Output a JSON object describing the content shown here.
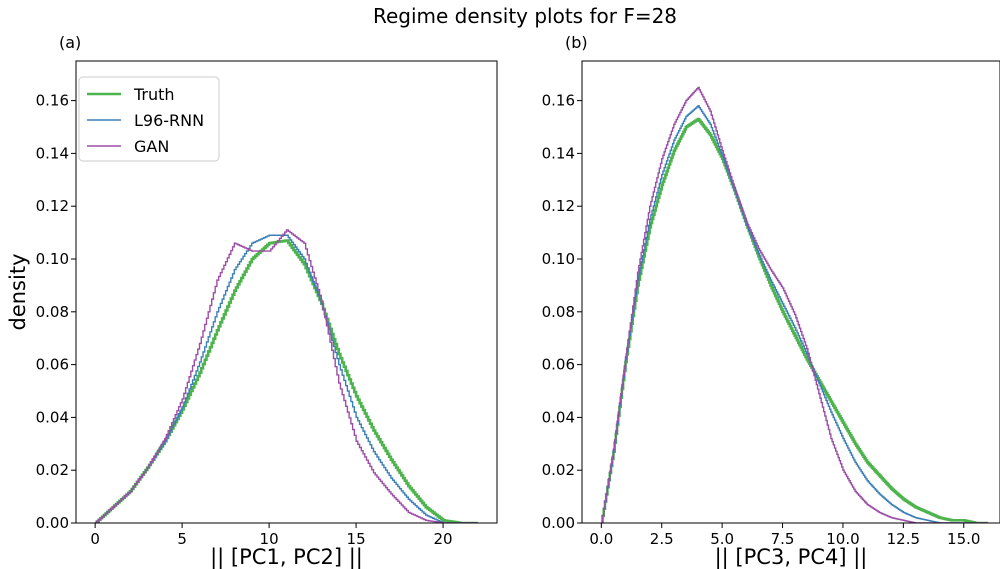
{
  "figure": {
    "suptitle": "Regime density plots for F=28"
  },
  "colors": {
    "Truth": "#4db34d",
    "L96-RNN": "#3b7fb7",
    "GAN": "#9b4ea5"
  },
  "chart_data": [
    {
      "type": "line",
      "panel_label": "(a)",
      "xlabel": "|| [PC1, PC2] ||",
      "ylabel": "density",
      "xlim": [
        -1.1,
        23.1
      ],
      "ylim": [
        0,
        0.175
      ],
      "xticks": [
        0,
        5,
        10,
        15,
        20
      ],
      "xtick_labels": [
        "0",
        "5",
        "10",
        "15",
        "20"
      ],
      "yticks": [
        0.0,
        0.02,
        0.04,
        0.06,
        0.08,
        0.1,
        0.12,
        0.14,
        0.16
      ],
      "ytick_labels": [
        "0.00",
        "0.02",
        "0.04",
        "0.06",
        "0.08",
        "0.10",
        "0.12",
        "0.14",
        "0.16"
      ],
      "grid": false,
      "legend": {
        "placement": "top-left",
        "entries": [
          "Truth",
          "L96-RNN",
          "GAN"
        ]
      },
      "series": [
        {
          "name": "Truth",
          "x": [
            0,
            1,
            2,
            3,
            4,
            5,
            6,
            7,
            8,
            9,
            10,
            11,
            12,
            13,
            14,
            15,
            16,
            17,
            18,
            19,
            20,
            21,
            22
          ],
          "y": [
            0.0,
            0.006,
            0.012,
            0.021,
            0.031,
            0.043,
            0.057,
            0.073,
            0.088,
            0.1,
            0.106,
            0.107,
            0.098,
            0.083,
            0.064,
            0.048,
            0.035,
            0.024,
            0.014,
            0.006,
            0.001,
            0.0,
            0.0
          ]
        },
        {
          "name": "L96-RNN",
          "x": [
            0,
            1,
            2,
            3,
            4,
            5,
            6,
            7,
            8,
            9,
            10,
            11,
            12,
            13,
            14,
            15,
            16,
            17,
            18,
            19,
            20,
            21,
            22
          ],
          "y": [
            0.0,
            0.006,
            0.012,
            0.021,
            0.031,
            0.044,
            0.061,
            0.08,
            0.096,
            0.106,
            0.109,
            0.109,
            0.1,
            0.083,
            0.06,
            0.04,
            0.027,
            0.017,
            0.009,
            0.003,
            0.0,
            0.0,
            0.0
          ]
        },
        {
          "name": "GAN",
          "x": [
            0,
            1,
            2,
            3,
            4,
            5,
            6,
            7,
            8,
            9,
            10,
            11,
            12,
            13,
            14,
            15,
            16,
            17,
            18,
            19,
            20,
            21,
            22
          ],
          "y": [
            0.0,
            0.006,
            0.012,
            0.021,
            0.032,
            0.047,
            0.068,
            0.092,
            0.106,
            0.103,
            0.103,
            0.111,
            0.106,
            0.084,
            0.053,
            0.031,
            0.019,
            0.011,
            0.004,
            0.001,
            0.0,
            0.0,
            0.0
          ]
        }
      ]
    },
    {
      "type": "line",
      "panel_label": "(b)",
      "xlabel": "|| [PC3, PC4] ||",
      "ylabel": "",
      "xlim": [
        -0.8,
        16.5
      ],
      "ylim": [
        0,
        0.175
      ],
      "xticks": [
        0,
        2.5,
        5,
        7.5,
        10,
        12.5,
        15
      ],
      "xtick_labels": [
        "0.0",
        "2.5",
        "5.0",
        "7.5",
        "10.0",
        "12.5",
        "15.0"
      ],
      "yticks": [
        0.0,
        0.02,
        0.04,
        0.06,
        0.08,
        0.1,
        0.12,
        0.14,
        0.16
      ],
      "ytick_labels": [
        "0.00",
        "0.02",
        "0.04",
        "0.06",
        "0.08",
        "0.10",
        "0.12",
        "0.14",
        "0.16"
      ],
      "grid": false,
      "legend": null,
      "series": [
        {
          "name": "Truth",
          "x": [
            0,
            0.5,
            1,
            1.5,
            2,
            2.5,
            3,
            3.5,
            4,
            4.5,
            5,
            5.5,
            6,
            6.5,
            7,
            7.5,
            8,
            8.5,
            9,
            9.5,
            10,
            10.5,
            11,
            11.5,
            12,
            12.5,
            13,
            13.5,
            14,
            14.5,
            15,
            15.5,
            16
          ],
          "y": [
            0.0,
            0.027,
            0.061,
            0.09,
            0.112,
            0.128,
            0.141,
            0.15,
            0.153,
            0.147,
            0.138,
            0.126,
            0.113,
            0.101,
            0.09,
            0.08,
            0.071,
            0.062,
            0.054,
            0.046,
            0.038,
            0.03,
            0.023,
            0.018,
            0.013,
            0.009,
            0.006,
            0.004,
            0.002,
            0.001,
            0.001,
            0.0,
            0.0
          ]
        },
        {
          "name": "L96-RNN",
          "x": [
            0,
            0.5,
            1,
            1.5,
            2,
            2.5,
            3,
            3.5,
            4,
            4.5,
            5,
            5.5,
            6,
            6.5,
            7,
            7.5,
            8,
            8.5,
            9,
            9.5,
            10,
            10.5,
            11,
            11.5,
            12,
            12.5,
            13,
            13.5,
            14,
            14.5,
            15,
            15.5,
            16
          ],
          "y": [
            0.0,
            0.027,
            0.062,
            0.092,
            0.115,
            0.132,
            0.145,
            0.154,
            0.158,
            0.151,
            0.139,
            0.126,
            0.113,
            0.102,
            0.092,
            0.083,
            0.074,
            0.064,
            0.053,
            0.042,
            0.032,
            0.023,
            0.016,
            0.011,
            0.007,
            0.004,
            0.002,
            0.001,
            0.0,
            0.0,
            0.0,
            0.0,
            0.0
          ]
        },
        {
          "name": "GAN",
          "x": [
            0,
            0.5,
            1,
            1.5,
            2,
            2.5,
            3,
            3.5,
            4,
            4.5,
            5,
            5.5,
            6,
            6.5,
            7,
            7.5,
            8,
            8.5,
            9,
            9.5,
            10,
            10.5,
            11,
            11.5,
            12,
            12.5,
            13,
            13.5,
            14,
            14.5,
            15,
            15.5,
            16
          ],
          "y": [
            0.0,
            0.028,
            0.063,
            0.095,
            0.12,
            0.138,
            0.151,
            0.16,
            0.165,
            0.156,
            0.141,
            0.127,
            0.114,
            0.104,
            0.096,
            0.089,
            0.079,
            0.066,
            0.049,
            0.032,
            0.02,
            0.012,
            0.007,
            0.004,
            0.002,
            0.001,
            0.0,
            0.0,
            0.0,
            0.0,
            0.0,
            0.0,
            0.0
          ]
        }
      ]
    }
  ]
}
